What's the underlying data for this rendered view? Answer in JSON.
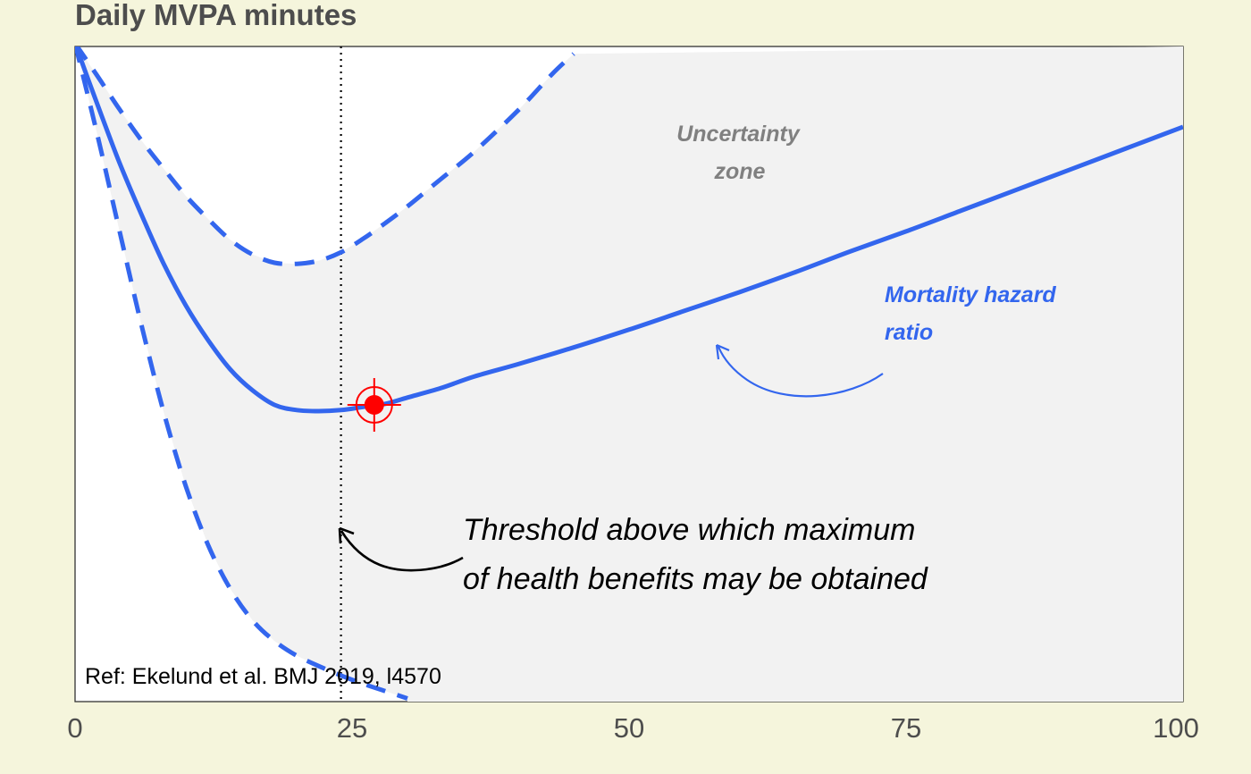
{
  "chart_data": {
    "type": "line",
    "title": "Daily MVPA minutes",
    "xlabel": "",
    "ylabel": "",
    "xlim": [
      0,
      100
    ],
    "x_ticks": [
      "0",
      "25",
      "50",
      "75",
      "100"
    ],
    "y_ticks_shown": false,
    "grid": false,
    "series": [
      {
        "name": "Mortality hazard ratio",
        "style": "solid",
        "x": [
          0,
          2,
          4,
          6,
          8,
          10,
          12,
          14,
          16,
          18,
          20,
          22,
          24,
          26,
          28,
          30,
          33,
          36,
          40,
          45,
          50,
          55,
          60,
          65,
          70,
          75,
          80,
          85,
          90,
          95,
          100
        ],
        "y": [
          1.0,
          0.942,
          0.886,
          0.836,
          0.789,
          0.749,
          0.716,
          0.688,
          0.668,
          0.654,
          0.649,
          0.648,
          0.649,
          0.652,
          0.655,
          0.661,
          0.67,
          0.681,
          0.693,
          0.709,
          0.726,
          0.744,
          0.762,
          0.781,
          0.801,
          0.82,
          0.84,
          0.86,
          0.88,
          0.9,
          0.92
        ]
      },
      {
        "name": "",
        "style": "dashed",
        "x": [
          0,
          2,
          4,
          6,
          8,
          10,
          12,
          14,
          16,
          18,
          20,
          22,
          24,
          26,
          28,
          30,
          33,
          36,
          40,
          43,
          45
        ],
        "y": [
          1.0,
          0.969,
          0.937,
          0.907,
          0.88,
          0.854,
          0.832,
          0.812,
          0.798,
          0.79,
          0.789,
          0.792,
          0.8,
          0.813,
          0.828,
          0.844,
          0.87,
          0.896,
          0.936,
          0.97,
          0.99
        ]
      },
      {
        "name": "",
        "style": "dashed",
        "x": [
          0,
          2,
          4,
          6,
          8,
          10,
          12,
          14,
          16,
          18,
          20,
          22,
          24,
          26,
          28,
          30
        ],
        "y": [
          1.0,
          0.913,
          0.821,
          0.73,
          0.647,
          0.576,
          0.52,
          0.478,
          0.448,
          0.428,
          0.414,
          0.404,
          0.395,
          0.387,
          0.38,
          0.373
        ]
      }
    ],
    "threshold_line_x": 24,
    "highlight_point": {
      "x": 27,
      "y": 0.654
    },
    "ylim": [
      0.37,
      0.997
    ],
    "colors": {
      "background": "#f5f5dc",
      "panel": "#ffffff",
      "band": "#f2f2f2",
      "series": "#3366ee",
      "marker": "#ff0000"
    },
    "annotations": {
      "uncertainty_line1": "Uncertainty",
      "uncertainty_line2": "zone",
      "hazard_line1": "Mortality hazard",
      "hazard_line2": "ratio",
      "threshold_line1": "Threshold above which maximum",
      "threshold_line2": "of health benefits may be obtained",
      "reference": "Ref: Ekelund et al. BMJ 2019, l4570"
    }
  }
}
